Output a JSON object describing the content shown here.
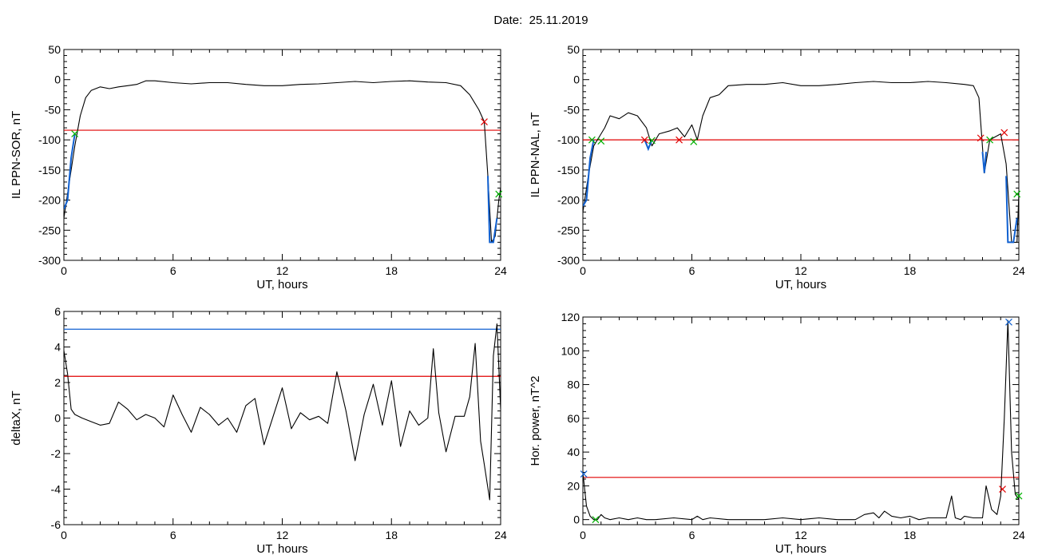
{
  "date_label": "Date:",
  "date_value": "25.11.2019",
  "colors": {
    "signal": "#000000",
    "threshold_red": "#e00000",
    "threshold_blue": "#1060d0",
    "segment_blue": "#1060d0",
    "marker_green": "#00b000",
    "marker_red": "#e00000",
    "marker_blue": "#1060d0"
  },
  "chart_data": [
    {
      "id": "sor",
      "type": "line",
      "xlabel": "UT, hours",
      "ylabel": "IL PPN-SOR, nT",
      "xlim": [
        0,
        24
      ],
      "ylim": [
        -300,
        50
      ],
      "xticks": [
        "0",
        "6",
        "12",
        "18",
        "24"
      ],
      "yticks": [
        "50",
        "0",
        "-50",
        "-100",
        "-150",
        "-200",
        "-250",
        "-300"
      ],
      "thresholds": [
        {
          "value": -84,
          "color": "red"
        }
      ],
      "series": [
        {
          "color": "black",
          "x": [
            0,
            0.3,
            0.6,
            0.9,
            1.2,
            1.5,
            2,
            2.5,
            3,
            3.5,
            4,
            4.5,
            5,
            6,
            7,
            8,
            9,
            10,
            11,
            12,
            13,
            14,
            15,
            16,
            17,
            18,
            19,
            20,
            21,
            21.8,
            22.3,
            22.8,
            23.1,
            23.3,
            23.5,
            23.7,
            23.9,
            24
          ],
          "y": [
            -230,
            -170,
            -110,
            -60,
            -30,
            -18,
            -12,
            -15,
            -12,
            -10,
            -8,
            -2,
            -2,
            -5,
            -7,
            -5,
            -5,
            -8,
            -10,
            -10,
            -8,
            -7,
            -5,
            -3,
            -5,
            -3,
            -2,
            -4,
            -5,
            -10,
            -25,
            -50,
            -70,
            -160,
            -270,
            -260,
            -200,
            -180
          ]
        }
      ],
      "segments": [
        {
          "color": "blue",
          "x": [
            0,
            0.2,
            0.4,
            0.6
          ],
          "y": [
            -215,
            -200,
            -130,
            -90
          ]
        },
        {
          "color": "blue",
          "x": [
            23.3,
            23.4,
            23.6,
            23.8
          ],
          "y": [
            -160,
            -270,
            -270,
            -230
          ]
        }
      ],
      "markers": [
        {
          "x": 0.6,
          "y": -90,
          "color": "green"
        },
        {
          "x": 23.1,
          "y": -70,
          "color": "red"
        },
        {
          "x": 23.9,
          "y": -190,
          "color": "green"
        }
      ]
    },
    {
      "id": "nal",
      "type": "line",
      "xlabel": "UT, hours",
      "ylabel": "IL PPN-NAL, nT",
      "xlim": [
        0,
        24
      ],
      "ylim": [
        -300,
        50
      ],
      "xticks": [
        "0",
        "6",
        "12",
        "18",
        "24"
      ],
      "yticks": [
        "50",
        "0",
        "-50",
        "-100",
        "-150",
        "-200",
        "-250",
        "-300"
      ],
      "thresholds": [
        {
          "value": -100,
          "color": "red"
        }
      ],
      "series": [
        {
          "color": "black",
          "x": [
            0,
            0.3,
            0.6,
            0.9,
            1.2,
            1.5,
            2,
            2.5,
            3,
            3.5,
            3.8,
            4.2,
            4.8,
            5.2,
            5.6,
            6,
            6.3,
            6.6,
            7,
            7.5,
            8,
            9,
            10,
            11,
            12,
            13,
            14,
            15,
            16,
            17,
            18,
            19,
            20,
            21,
            21.5,
            21.8,
            22.1,
            22.4,
            22.7,
            23,
            23.3,
            23.6,
            23.9,
            24
          ],
          "y": [
            -220,
            -160,
            -110,
            -95,
            -80,
            -60,
            -65,
            -55,
            -60,
            -80,
            -110,
            -90,
            -85,
            -80,
            -95,
            -75,
            -100,
            -60,
            -30,
            -25,
            -10,
            -8,
            -8,
            -5,
            -10,
            -10,
            -8,
            -5,
            -3,
            -5,
            -5,
            -3,
            -5,
            -8,
            -10,
            -30,
            -155,
            -100,
            -95,
            -90,
            -140,
            -270,
            -270,
            -190
          ]
        }
      ],
      "segments": [
        {
          "color": "blue",
          "x": [
            0,
            0.2,
            0.4,
            0.6
          ],
          "y": [
            -210,
            -200,
            -130,
            -100
          ]
        },
        {
          "color": "blue",
          "x": [
            3.4,
            3.6,
            3.8
          ],
          "y": [
            -100,
            -115,
            -100
          ]
        },
        {
          "color": "blue",
          "x": [
            22.0,
            22.1,
            22.2
          ],
          "y": [
            -120,
            -155,
            -120
          ]
        },
        {
          "color": "blue",
          "x": [
            23.3,
            23.4,
            23.7,
            23.9
          ],
          "y": [
            -160,
            -270,
            -270,
            -230
          ]
        }
      ],
      "markers": [
        {
          "x": 0.5,
          "y": -100,
          "color": "green"
        },
        {
          "x": 1.0,
          "y": -102,
          "color": "green"
        },
        {
          "x": 3.4,
          "y": -100,
          "color": "red"
        },
        {
          "x": 3.8,
          "y": -101,
          "color": "green"
        },
        {
          "x": 5.3,
          "y": -100,
          "color": "red"
        },
        {
          "x": 6.1,
          "y": -103,
          "color": "green"
        },
        {
          "x": 21.9,
          "y": -97,
          "color": "red"
        },
        {
          "x": 22.4,
          "y": -100,
          "color": "green"
        },
        {
          "x": 23.2,
          "y": -88,
          "color": "red"
        },
        {
          "x": 23.9,
          "y": -190,
          "color": "green"
        }
      ]
    },
    {
      "id": "deltax",
      "type": "line",
      "xlabel": "UT, hours",
      "ylabel": "deltaX, nT",
      "xlim": [
        0,
        24
      ],
      "ylim": [
        -6,
        6
      ],
      "xticks": [
        "0",
        "6",
        "12",
        "18",
        "24"
      ],
      "yticks": [
        "6",
        "4",
        "2",
        "0",
        "-2",
        "-4",
        "-6"
      ],
      "thresholds": [
        {
          "value": 5.0,
          "color": "blue"
        },
        {
          "value": 2.35,
          "color": "red"
        }
      ],
      "series": [
        {
          "color": "black",
          "x": [
            0,
            0.2,
            0.4,
            0.6,
            1,
            1.5,
            2,
            2.5,
            3,
            3.5,
            4,
            4.5,
            5,
            5.5,
            6,
            6.5,
            7,
            7.5,
            8,
            8.5,
            9,
            9.5,
            10,
            10.5,
            11,
            11.5,
            12,
            12.5,
            13,
            13.5,
            14,
            14.5,
            15,
            15.5,
            16,
            16.5,
            17,
            17.5,
            18,
            18.5,
            19,
            19.5,
            20,
            20.3,
            20.6,
            21,
            21.5,
            22,
            22.3,
            22.6,
            22.9,
            23.1,
            23.4,
            23.6,
            23.8,
            24
          ],
          "y": [
            3.8,
            2.5,
            0.5,
            0.2,
            0.0,
            -0.2,
            -0.4,
            -0.3,
            0.9,
            0.5,
            -0.1,
            0.2,
            0.0,
            -0.5,
            1.3,
            0.2,
            -0.8,
            0.6,
            0.2,
            -0.4,
            0.0,
            -0.8,
            0.7,
            1.1,
            -1.5,
            0.1,
            1.7,
            -0.6,
            0.3,
            -0.1,
            0.1,
            -0.3,
            2.6,
            0.4,
            -2.4,
            0.2,
            1.9,
            -0.4,
            2.1,
            -1.6,
            0.4,
            -0.4,
            0.0,
            3.9,
            0.3,
            -1.9,
            0.1,
            0.1,
            1.2,
            4.2,
            -1.3,
            -2.6,
            -4.6,
            3.5,
            5.3,
            0.5
          ]
        }
      ],
      "segments": [],
      "markers": []
    },
    {
      "id": "power",
      "type": "line",
      "xlabel": "UT, hours",
      "ylabel": "Hor. power, nT^2",
      "xlim": [
        0,
        24
      ],
      "ylim": [
        -3,
        120
      ],
      "xticks": [
        "0",
        "6",
        "12",
        "18",
        "24"
      ],
      "yticks": [
        "120",
        "100",
        "80",
        "60",
        "40",
        "20",
        "0"
      ],
      "thresholds": [
        {
          "value": 25,
          "color": "red"
        }
      ],
      "series": [
        {
          "color": "black",
          "x": [
            0,
            0.2,
            0.4,
            0.6,
            0.8,
            1,
            1.2,
            1.5,
            2,
            2.5,
            3,
            3.5,
            4,
            5,
            6,
            6.3,
            6.6,
            7,
            8,
            9,
            10,
            11,
            12,
            13,
            14,
            15,
            15.5,
            16,
            16.3,
            16.6,
            17,
            17.5,
            18,
            18.5,
            19,
            19.5,
            20,
            20.3,
            20.5,
            20.8,
            21,
            21.5,
            22,
            22.2,
            22.5,
            22.8,
            23,
            23.2,
            23.4,
            23.6,
            23.8,
            24
          ],
          "y": [
            28,
            8,
            2,
            0,
            0,
            3,
            1,
            0,
            1,
            0,
            1,
            0,
            0,
            1,
            0,
            2,
            0,
            1,
            0,
            0,
            0,
            1,
            0,
            1,
            0,
            0,
            3,
            4,
            1,
            5,
            2,
            1,
            2,
            0,
            1,
            1,
            1,
            14,
            1,
            0,
            2,
            1,
            1,
            20,
            6,
            3,
            14,
            60,
            118,
            40,
            15,
            12
          ]
        }
      ],
      "segments": [],
      "markers": [
        {
          "x": 0.05,
          "y": 27,
          "color": "blue"
        },
        {
          "x": 0.7,
          "y": 0,
          "color": "green"
        },
        {
          "x": 23.1,
          "y": 18,
          "color": "red"
        },
        {
          "x": 23.45,
          "y": 117,
          "color": "blue"
        },
        {
          "x": 24,
          "y": 14,
          "color": "green"
        }
      ]
    }
  ]
}
